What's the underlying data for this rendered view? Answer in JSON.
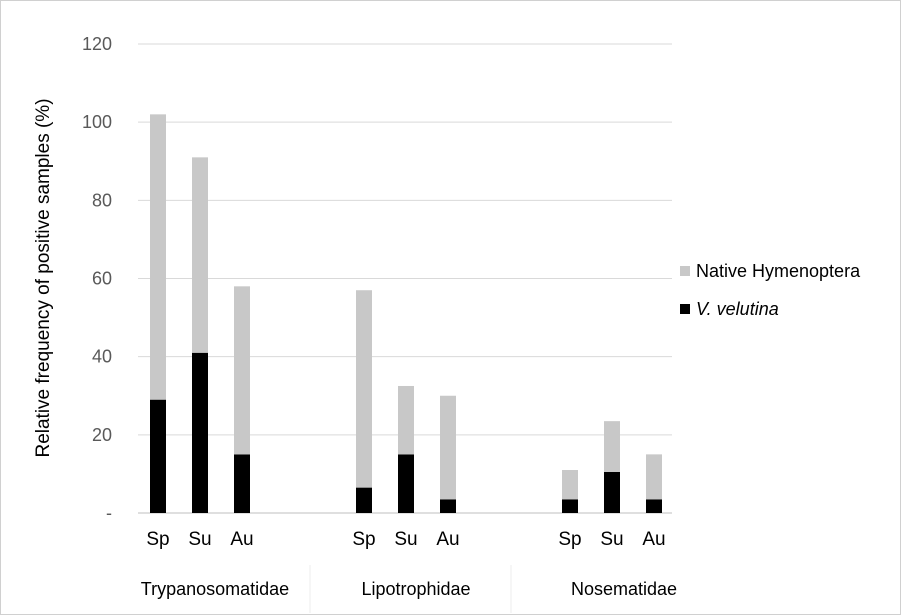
{
  "chart_data": {
    "type": "bar",
    "stacked": true,
    "ylabel": "Relative frequency of positive samples (%)",
    "ylim": [
      0,
      120
    ],
    "y_ticks": [
      "-",
      "20",
      "40",
      "60",
      "80",
      "100",
      "120"
    ],
    "grid": true,
    "legend_position": "right",
    "groups": [
      {
        "name": "Trypanosomatidae",
        "categories": [
          "Sp",
          "Su",
          "Au"
        ]
      },
      {
        "name": "Lipotrophidae",
        "categories": [
          "Sp",
          "Su",
          "Au"
        ]
      },
      {
        "name": "Nosematidae",
        "categories": [
          "Sp",
          "Su",
          "Au"
        ]
      }
    ],
    "series": [
      {
        "name": "V. velutina",
        "color": "#000000",
        "values": [
          29,
          41,
          15,
          6.5,
          15,
          3.5,
          3.5,
          10.5,
          3.5
        ]
      },
      {
        "name": "Native Hymenoptera",
        "color": "#c8c8c8",
        "values": [
          73,
          50,
          43,
          50.5,
          17.5,
          26.5,
          7.5,
          13,
          11.5
        ]
      }
    ]
  }
}
